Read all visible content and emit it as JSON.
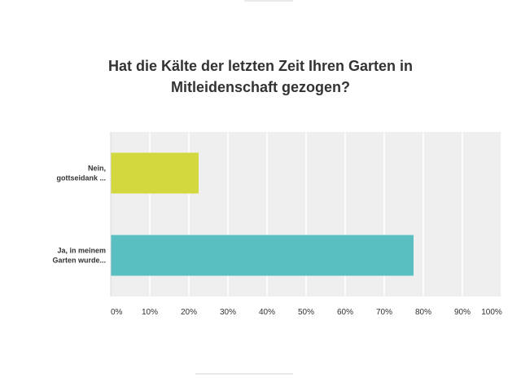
{
  "chart_data": {
    "type": "bar",
    "orientation": "horizontal",
    "title_lines": [
      "Hat die Kälte der letzten Zeit Ihren Garten in",
      "Mitleidenschaft gezogen?"
    ],
    "categories": [
      [
        "Nein,",
        "gottseidank ..."
      ],
      [
        "Ja, in meinem",
        "Garten wurde..."
      ]
    ],
    "values": [
      22.5,
      77.5
    ],
    "bar_colors": [
      "#d3d83f",
      "#5abfc1"
    ],
    "xlim": [
      0,
      100
    ],
    "x_ticks": [
      0,
      10,
      20,
      30,
      40,
      50,
      60,
      70,
      80,
      90,
      100
    ],
    "x_tick_labels": [
      "0%",
      "10%",
      "20%",
      "30%",
      "40%",
      "50%",
      "60%",
      "70%",
      "80%",
      "90%",
      "100%"
    ],
    "grid": true,
    "plot_background": "#efefef",
    "grid_color": "#ffffff"
  }
}
